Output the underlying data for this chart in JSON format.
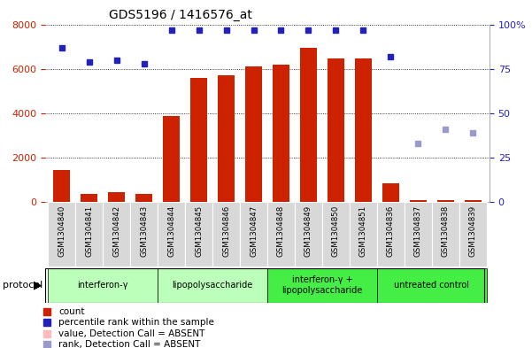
{
  "title": "GDS5196 / 1416576_at",
  "samples": [
    "GSM1304840",
    "GSM1304841",
    "GSM1304842",
    "GSM1304843",
    "GSM1304844",
    "GSM1304845",
    "GSM1304846",
    "GSM1304847",
    "GSM1304848",
    "GSM1304849",
    "GSM1304850",
    "GSM1304851",
    "GSM1304836",
    "GSM1304837",
    "GSM1304838",
    "GSM1304839"
  ],
  "counts": [
    1450,
    350,
    430,
    340,
    3850,
    5600,
    5700,
    6100,
    6200,
    6950,
    6450,
    6480,
    820,
    60,
    60,
    60
  ],
  "percentile_ranks_present_scale": [
    87,
    79,
    80,
    78,
    97,
    97,
    97,
    97,
    97,
    97,
    97,
    97,
    82,
    null,
    null,
    null
  ],
  "rank_absent_scale": [
    null,
    null,
    null,
    null,
    null,
    null,
    null,
    null,
    null,
    null,
    null,
    null,
    null,
    33,
    41,
    39
  ],
  "bar_color": "#cc2200",
  "dot_blue_color": "#2222bb",
  "dot_light_blue": "#9999cc",
  "ylim_left": [
    0,
    8000
  ],
  "ylim_right": [
    0,
    100
  ],
  "yticks_left": [
    0,
    2000,
    4000,
    6000,
    8000
  ],
  "yticks_right": [
    0,
    25,
    50,
    75,
    100
  ],
  "groups": [
    {
      "label": "interferon-γ",
      "start": 0,
      "end": 4,
      "color": "#bbffbb"
    },
    {
      "label": "lipopolysaccharide",
      "start": 4,
      "end": 8,
      "color": "#bbffbb"
    },
    {
      "label": "interferon-γ +\nlipopolysaccharide",
      "start": 8,
      "end": 12,
      "color": "#44ee44"
    },
    {
      "label": "untreated control",
      "start": 12,
      "end": 16,
      "color": "#44ee44"
    }
  ],
  "legend_items": [
    {
      "label": "count",
      "color": "#cc2200"
    },
    {
      "label": "percentile rank within the sample",
      "color": "#2222bb"
    },
    {
      "label": "value, Detection Call = ABSENT",
      "color": "#ffbbbb"
    },
    {
      "label": "rank, Detection Call = ABSENT",
      "color": "#9999cc"
    }
  ]
}
